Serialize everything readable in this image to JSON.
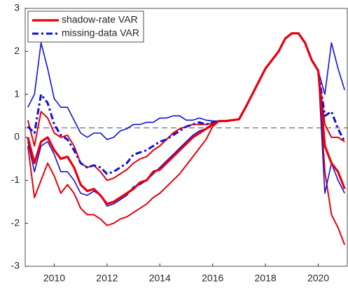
{
  "chart_data": {
    "type": "line",
    "x": [
      2009,
      2009.25,
      2009.5,
      2009.75,
      2010,
      2010.25,
      2010.5,
      2010.75,
      2011,
      2011.25,
      2011.5,
      2011.75,
      2012,
      2012.25,
      2012.5,
      2012.75,
      2013,
      2013.25,
      2013.5,
      2013.75,
      2014,
      2014.25,
      2014.5,
      2014.75,
      2015,
      2015.25,
      2015.5,
      2015.75,
      2016,
      2016.25,
      2016.5,
      2016.75,
      2017,
      2017.25,
      2017.5,
      2017.75,
      2018,
      2018.25,
      2018.5,
      2018.75,
      2019,
      2019.25,
      2019.5,
      2019.75,
      2020,
      2020.25,
      2020.5,
      2020.75,
      2021
    ],
    "xlim": [
      2008.9,
      2021.1
    ],
    "xticks": [
      2010,
      2012,
      2014,
      2016,
      2018,
      2020
    ],
    "ylim": [
      -3,
      3
    ],
    "yticks": [
      -3,
      -2,
      -1,
      0,
      1,
      2,
      3
    ],
    "reference_line": {
      "value": 0.22,
      "color": "#707070",
      "dashed": true
    },
    "legend": "top-left",
    "series": [
      {
        "color": "#e8000b",
        "width": 2,
        "dashed": false,
        "values": [
          0.4,
          -0.2,
          0.6,
          0.45,
          0.1,
          0.0,
          0.05,
          -0.2,
          -0.6,
          -0.7,
          -0.65,
          -0.8,
          -1.0,
          -0.95,
          -0.85,
          -0.75,
          -0.6,
          -0.5,
          -0.45,
          -0.3,
          -0.2,
          -0.05,
          0.1,
          0.2,
          0.25,
          0.3,
          0.3,
          0.3,
          0.33,
          0.38,
          0.38,
          0.4,
          0.42,
          0.7,
          1.0,
          1.3,
          1.6,
          1.8,
          2.0,
          2.3,
          2.42,
          2.42,
          2.2,
          1.8,
          1.55,
          0.3,
          0.0,
          0.0,
          -0.1
        ]
      },
      {
        "color": "#e8000b",
        "width": 2,
        "dashed": false,
        "values": [
          -0.2,
          -1.4,
          -1.0,
          -0.6,
          -0.9,
          -1.3,
          -1.1,
          -1.3,
          -1.65,
          -1.8,
          -1.8,
          -1.9,
          -2.05,
          -2.0,
          -1.9,
          -1.85,
          -1.75,
          -1.65,
          -1.55,
          -1.4,
          -1.3,
          -1.15,
          -1.0,
          -0.85,
          -0.65,
          -0.45,
          -0.25,
          -0.05,
          0.25,
          0.38,
          0.38,
          0.4,
          0.42,
          0.7,
          1.0,
          1.3,
          1.6,
          1.8,
          2.0,
          2.3,
          2.42,
          2.42,
          2.2,
          1.8,
          1.55,
          -0.8,
          -1.8,
          -2.1,
          -2.5
        ]
      },
      {
        "color": "#1010d8",
        "width": 1.6,
        "dashed": false,
        "values": [
          0.7,
          1.0,
          2.2,
          1.6,
          0.9,
          0.7,
          0.7,
          0.4,
          0.1,
          0.0,
          0.1,
          0.1,
          -0.05,
          0.0,
          0.15,
          0.2,
          0.3,
          0.3,
          0.35,
          0.35,
          0.45,
          0.45,
          0.5,
          0.5,
          0.4,
          0.4,
          0.45,
          0.4,
          0.38,
          0.38,
          0.38,
          0.4,
          0.42,
          0.7,
          1.0,
          1.3,
          1.6,
          1.8,
          2.0,
          2.3,
          2.42,
          2.42,
          2.2,
          1.8,
          1.55,
          1.0,
          2.2,
          1.6,
          1.1
        ]
      },
      {
        "color": "#1010d8",
        "width": 1.6,
        "dashed": false,
        "values": [
          -0.1,
          -0.8,
          -0.2,
          -0.1,
          -0.4,
          -0.8,
          -0.8,
          -1.0,
          -1.3,
          -1.35,
          -1.25,
          -1.35,
          -1.6,
          -1.55,
          -1.45,
          -1.35,
          -1.15,
          -1.1,
          -1.0,
          -0.85,
          -0.7,
          -0.55,
          -0.4,
          -0.25,
          -0.1,
          0.05,
          0.15,
          0.2,
          0.3,
          0.38,
          0.38,
          0.4,
          0.42,
          0.7,
          1.0,
          1.3,
          1.6,
          1.8,
          2.0,
          2.3,
          2.42,
          2.42,
          2.2,
          1.8,
          1.55,
          -1.3,
          -0.6,
          -1.0,
          -1.3
        ]
      },
      {
        "name": "missing-data VAR",
        "color": "#1010d8",
        "width": 3,
        "dashed": true,
        "values": [
          0.25,
          0.1,
          1.0,
          0.8,
          0.3,
          0.05,
          -0.05,
          -0.3,
          -0.6,
          -0.7,
          -0.65,
          -0.7,
          -0.85,
          -0.8,
          -0.7,
          -0.6,
          -0.4,
          -0.35,
          -0.3,
          -0.2,
          -0.1,
          -0.05,
          0.05,
          0.15,
          0.25,
          0.3,
          0.35,
          0.3,
          0.35,
          0.38,
          0.38,
          0.4,
          0.42,
          0.7,
          1.0,
          1.3,
          1.6,
          1.8,
          2.0,
          2.3,
          2.42,
          2.42,
          2.2,
          1.8,
          1.55,
          0.5,
          0.6,
          0.2,
          -0.1
        ]
      },
      {
        "name": "shadow-rate VAR",
        "color": "#e8000b",
        "width": 3.2,
        "dashed": false,
        "values": [
          0.0,
          -0.6,
          -0.1,
          0.0,
          -0.3,
          -0.5,
          -0.45,
          -0.7,
          -1.1,
          -1.25,
          -1.2,
          -1.35,
          -1.55,
          -1.5,
          -1.4,
          -1.3,
          -1.2,
          -1.05,
          -1.0,
          -0.8,
          -0.75,
          -0.6,
          -0.45,
          -0.3,
          -0.15,
          0.0,
          0.1,
          0.2,
          0.3,
          0.38,
          0.38,
          0.4,
          0.42,
          0.7,
          1.0,
          1.3,
          1.6,
          1.8,
          2.0,
          2.3,
          2.42,
          2.42,
          2.2,
          1.8,
          1.55,
          -0.2,
          -0.6,
          -0.8,
          -1.2
        ]
      }
    ]
  }
}
